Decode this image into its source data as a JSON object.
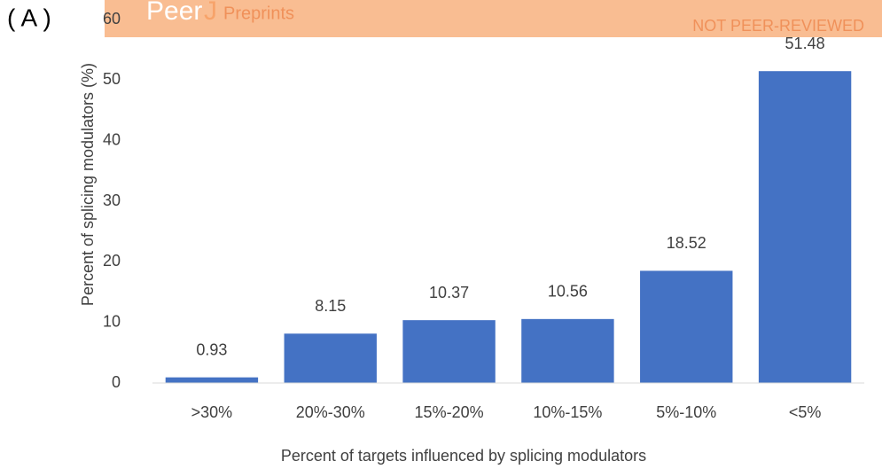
{
  "panel_label": "( A )",
  "watermark": {
    "brand": "Peer",
    "j": "J",
    "product": "Preprints",
    "status": "NOT PEER-REVIEWED"
  },
  "chart_data": {
    "type": "bar",
    "x_label": "Percent of targets influenced by splicing modulators",
    "y_label": "Percent of splicing modulators (%)",
    "categories": [
      ">30%",
      "20%-30%",
      "15%-20%",
      "10%-15%",
      "5%-10%",
      "<5%"
    ],
    "values": [
      0.93,
      8.15,
      10.37,
      10.56,
      18.52,
      51.48
    ],
    "color": "#4472c4",
    "ylim": [
      0,
      60
    ],
    "yticks": [
      0,
      10,
      20,
      30,
      40,
      50,
      60
    ],
    "grid": false
  }
}
